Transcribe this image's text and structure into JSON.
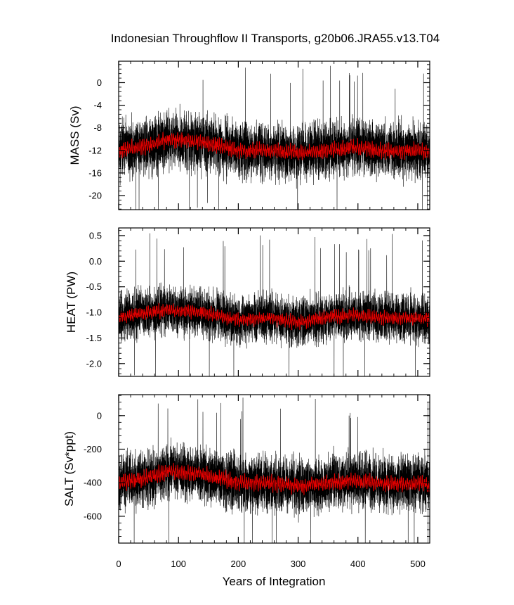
{
  "figure": {
    "title": "Indonesian Throughflow II Transports, g20b06.JRA55.v13.T04",
    "xlabel": "Years of Integration"
  },
  "colors": {
    "raw_series": "#000000",
    "smoothed_series": "#dd0000",
    "background": "#ffffff"
  },
  "chart_data": [
    {
      "type": "line",
      "ylabel": "MASS (Sv)",
      "xlim": [
        0,
        520
      ],
      "ylim": [
        -22.5,
        3.8
      ],
      "xticks": [
        0,
        100,
        200,
        300,
        400,
        500
      ],
      "yticks": [
        0,
        -4,
        -8,
        -12,
        -16,
        -20
      ],
      "ytick_labels": [
        "0",
        "-4",
        "-8",
        "-12",
        "-16",
        "-20"
      ],
      "series": [
        {
          "style": "black thin line, high-frequency monthly values",
          "mean": -12,
          "typical_range": [
            -18,
            -5
          ],
          "extremes": [
            -22,
            3
          ]
        },
        {
          "style": "red line, smoothed",
          "approx_values_at_x": [
            [
              0,
              -12
            ],
            [
              50,
              -11.2
            ],
            [
              85,
              -10
            ],
            [
              140,
              -10.5
            ],
            [
              200,
              -12
            ],
            [
              250,
              -12
            ],
            [
              300,
              -12.5
            ],
            [
              350,
              -12
            ],
            [
              400,
              -11.5
            ],
            [
              450,
              -12.2
            ],
            [
              500,
              -12
            ],
            [
              520,
              -12.5
            ]
          ]
        }
      ]
    },
    {
      "type": "line",
      "ylabel": "HEAT (PW)",
      "xlim": [
        0,
        520
      ],
      "ylim": [
        -2.25,
        0.65
      ],
      "xticks": [
        0,
        100,
        200,
        300,
        400,
        500
      ],
      "yticks": [
        0.5,
        0.0,
        -0.5,
        -1.0,
        -1.5,
        -2.0
      ],
      "ytick_labels": [
        "0.5",
        "0.0",
        "-0.5",
        "-1.0",
        "-1.5",
        "-2.0"
      ],
      "series": [
        {
          "style": "black thin line, high-frequency monthly values",
          "mean": -1.1,
          "typical_range": [
            -1.7,
            -0.45
          ],
          "extremes": [
            -2.2,
            0.55
          ]
        },
        {
          "style": "red line, smoothed",
          "approx_values_at_x": [
            [
              0,
              -1.1
            ],
            [
              50,
              -1.0
            ],
            [
              85,
              -0.95
            ],
            [
              140,
              -1.0
            ],
            [
              200,
              -1.15
            ],
            [
              250,
              -1.1
            ],
            [
              300,
              -1.2
            ],
            [
              350,
              -1.1
            ],
            [
              400,
              -1.05
            ],
            [
              450,
              -1.12
            ],
            [
              500,
              -1.1
            ],
            [
              520,
              -1.15
            ]
          ]
        }
      ]
    },
    {
      "type": "line",
      "ylabel": "SALT (Sv*ppt)",
      "xlim": [
        0,
        520
      ],
      "ylim": [
        -760,
        125
      ],
      "xticks": [
        0,
        100,
        200,
        300,
        400,
        500
      ],
      "xtick_labels": [
        "0",
        "100",
        "200",
        "300",
        "400",
        "500"
      ],
      "yticks": [
        0,
        -200,
        -400,
        -600
      ],
      "ytick_labels": [
        "0",
        "-200",
        "-400",
        "-600"
      ],
      "series": [
        {
          "style": "black thin line, high-frequency monthly values",
          "mean": -400,
          "typical_range": [
            -620,
            -180
          ],
          "extremes": [
            -750,
            110
          ]
        },
        {
          "style": "red line, smoothed",
          "approx_values_at_x": [
            [
              0,
              -400
            ],
            [
              50,
              -370
            ],
            [
              85,
              -330
            ],
            [
              140,
              -350
            ],
            [
              200,
              -400
            ],
            [
              250,
              -400
            ],
            [
              300,
              -420
            ],
            [
              350,
              -400
            ],
            [
              400,
              -390
            ],
            [
              450,
              -410
            ],
            [
              500,
              -400
            ],
            [
              520,
              -415
            ]
          ]
        }
      ]
    }
  ]
}
